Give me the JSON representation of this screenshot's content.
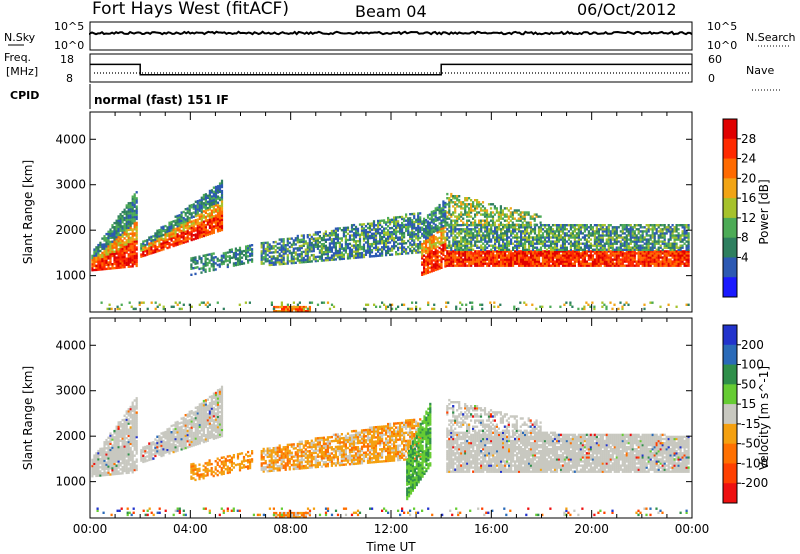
{
  "header": {
    "radar": "Fort Hays West (fitACF)",
    "beam": "Beam 04",
    "date": "06/Oct/2012"
  },
  "strip_labels": {
    "nsky": "N.Sky",
    "nsky_hi": "10^5",
    "nsky_lo": "10^0",
    "nsearch": "N.Search",
    "nsearch_hi": "10^5",
    "nsearch_lo": "10^0",
    "freq_top": "Freq.",
    "freq_unit": "[MHz]",
    "freq_hi": "18",
    "freq_lo": "8",
    "nave": "Nave",
    "nave_hi": "60",
    "nave_lo": "0",
    "cpid": "CPID",
    "mode": "normal (fast) 151 IF"
  },
  "chart_data": [
    {
      "type": "heatmap",
      "title": "Power",
      "ylabel": "Slant Range [km]",
      "xlabel": "",
      "x_ticks": [
        "00:00",
        "04:00",
        "08:00",
        "12:00",
        "16:00",
        "20:00",
        "00:00"
      ],
      "y_ticks": [
        "1000",
        "2000",
        "3000",
        "4000"
      ],
      "ylim": [
        200,
        4600
      ],
      "xlim_hours": [
        0,
        24
      ],
      "colorbar_label": "Power [dB]",
      "colorbar_ticks": [
        "4",
        "8",
        "12",
        "16",
        "20",
        "24",
        "28"
      ],
      "colors": [
        "#1a1aff",
        "#2c59b3",
        "#2e7f5f",
        "#4cab56",
        "#a6c22b",
        "#f1a415",
        "#ff6a00",
        "#ff2a00",
        "#e00000"
      ]
    },
    {
      "type": "heatmap",
      "title": "Velocity",
      "ylabel": "Slant Range [km]",
      "xlabel": "Time UT",
      "x_ticks": [
        "00:00",
        "04:00",
        "08:00",
        "12:00",
        "16:00",
        "20:00",
        "00:00"
      ],
      "y_ticks": [
        "1000",
        "2000",
        "3000",
        "4000"
      ],
      "ylim": [
        200,
        4600
      ],
      "xlim_hours": [
        0,
        24
      ],
      "colorbar_label": "Velocity [m s^-1]",
      "colorbar_ticks": [
        "200",
        "100",
        "50",
        "15",
        "-15",
        "-50",
        "-100",
        "-200"
      ],
      "colors": [
        "#2233cc",
        "#2a6ab8",
        "#2f8f4a",
        "#66cc33",
        "#c8c8c0",
        "#f4a010",
        "#ff7000",
        "#ff4000",
        "#ee1010"
      ]
    }
  ],
  "freq_segments": [
    {
      "from_hour": 0,
      "to_hour": 2,
      "mhz": 14.3
    },
    {
      "from_hour": 2,
      "to_hour": 14,
      "mhz": 10.6
    },
    {
      "from_hour": 14,
      "to_hour": 24,
      "mhz": 14.3
    }
  ]
}
